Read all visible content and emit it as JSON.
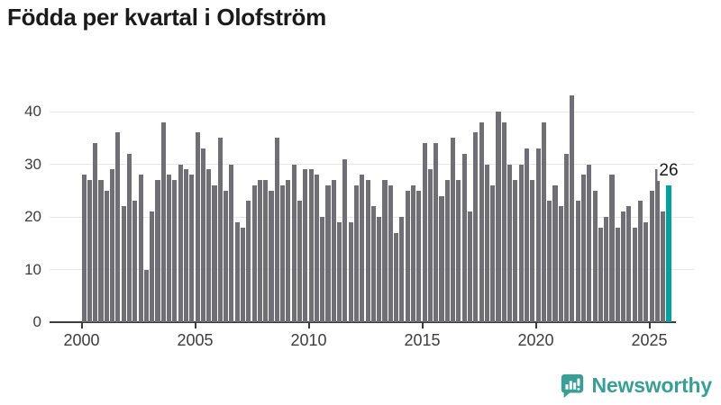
{
  "title": "Födda per kvartal i Olofström",
  "annotation": {
    "label": "26"
  },
  "logo": {
    "text": "Newsworthy"
  },
  "colors": {
    "bar": "#6f6f75",
    "highlight": "#00a1a1",
    "grid": "#e8e8e8",
    "axis": "#3b3b3b",
    "tick_text": "#3d3d3d",
    "title_text": "#1a1a1a",
    "logo_teal": "#3a9e96"
  },
  "chart_data": {
    "type": "bar",
    "title": "Födda per kvartal i Olofström",
    "frequency": "quarterly",
    "start": "2000-Q1",
    "end": "2025-Q4",
    "start_year": 2000,
    "values": [
      28,
      27,
      34,
      27,
      25,
      29,
      36,
      22,
      32,
      23,
      28,
      10,
      21,
      27,
      38,
      28,
      27,
      30,
      29,
      28,
      36,
      33,
      29,
      26,
      35,
      25,
      30,
      19,
      18,
      23,
      26,
      27,
      27,
      25,
      35,
      26,
      27,
      30,
      23,
      29,
      29,
      28,
      20,
      26,
      27,
      19,
      31,
      19,
      26,
      28,
      27,
      22,
      20,
      27,
      26,
      17,
      20,
      25,
      26,
      25,
      34,
      29,
      34,
      24,
      27,
      35,
      27,
      32,
      21,
      36,
      38,
      30,
      26,
      40,
      38,
      30,
      27,
      30,
      33,
      27,
      33,
      38,
      23,
      26,
      22,
      32,
      43,
      23,
      28,
      30,
      25,
      18,
      20,
      28,
      18,
      21,
      22,
      18,
      23,
      19,
      25,
      29,
      21,
      26
    ],
    "highlight_index": 103,
    "highlight_value_label": "26",
    "yticks": [
      0,
      10,
      20,
      30,
      40
    ],
    "xticks": [
      2000,
      2005,
      2010,
      2015,
      2020,
      2025
    ],
    "ylim": [
      0,
      45
    ],
    "grid": "horizontal",
    "legend": "none",
    "xlabel": "",
    "ylabel": ""
  }
}
